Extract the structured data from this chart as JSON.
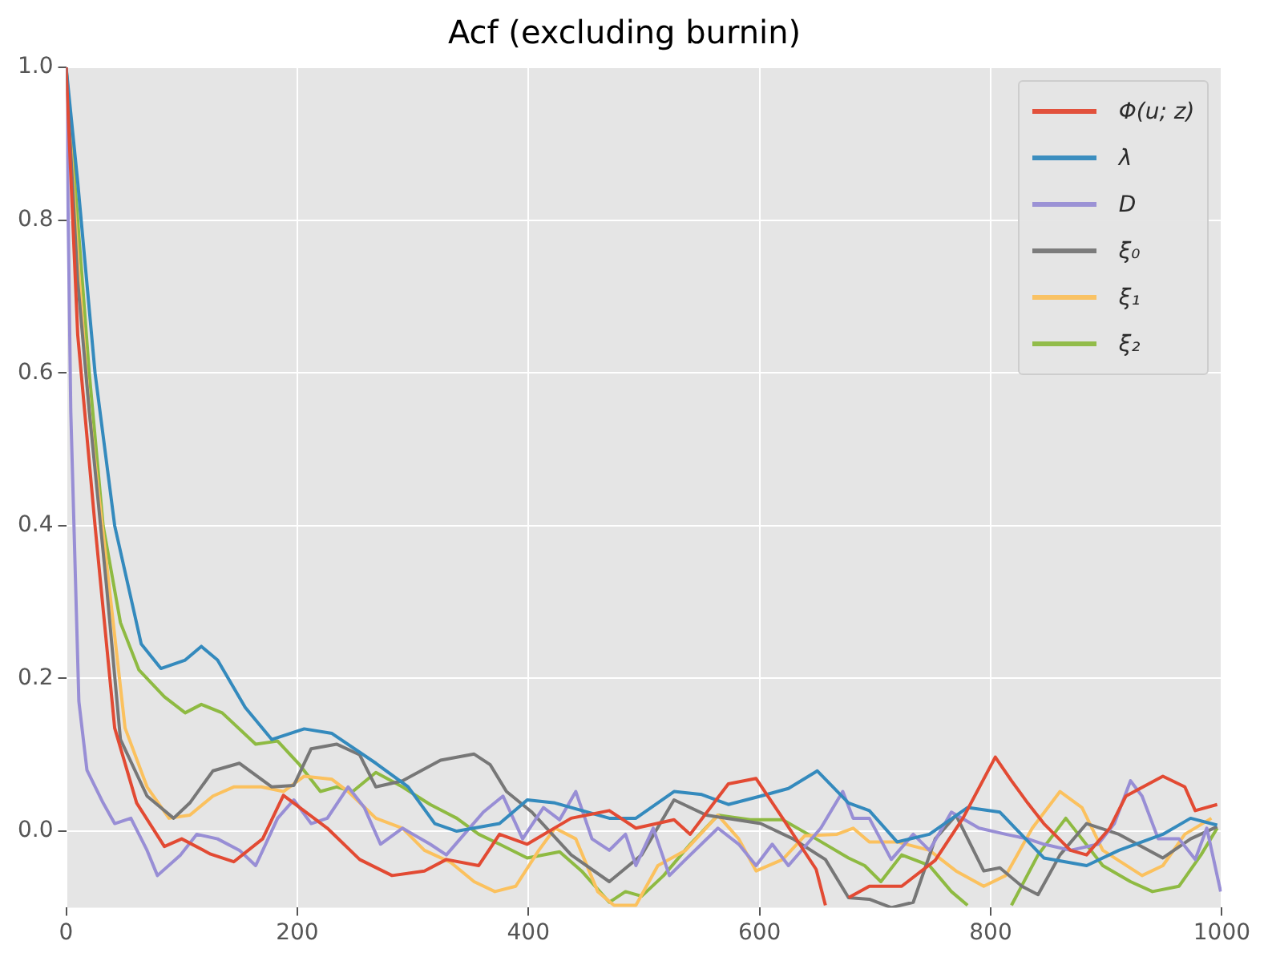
{
  "chart_data": {
    "type": "line",
    "title": "Acf (excluding burnin)",
    "xlim": [
      0,
      1000
    ],
    "xticks": [
      0,
      200,
      400,
      600,
      800,
      1000
    ],
    "ylim": [
      -0.1,
      1.0
    ],
    "yticks": [
      {
        "value": 0,
        "label": "0.0"
      },
      {
        "value": 0.2,
        "label": "0.2"
      },
      {
        "value": 0.4,
        "label": "0.4"
      },
      {
        "value": 0.6,
        "label": "0.6"
      },
      {
        "value": 0.8,
        "label": "0.8"
      },
      {
        "value": 1.0,
        "label": "1.0"
      }
    ],
    "grid": true,
    "legend": "top right",
    "series": [
      {
        "name": "Φ(u; z)",
        "color": "#e24a33",
        "x": [
          0,
          10,
          25,
          42,
          61,
          85,
          100,
          125,
          145,
          170,
          188,
          226,
          254,
          282,
          310,
          329,
          357,
          375,
          399,
          437,
          470,
          493,
          526,
          540,
          573,
          597,
          620,
          649,
          657,
          665,
          677,
          695,
          723,
          752,
          776,
          804,
          818,
          832,
          846,
          869,
          883,
          903,
          917,
          949,
          968,
          977,
          996
        ],
        "values": [
          1.0,
          0.65,
          0.4,
          0.135,
          0.037,
          -0.02,
          -0.01,
          -0.03,
          -0.04,
          -0.01,
          0.047,
          0.004,
          -0.037,
          -0.058,
          -0.052,
          -0.037,
          -0.045,
          -0.004,
          -0.017,
          0.017,
          0.027,
          0.004,
          0.015,
          -0.004,
          0.062,
          0.069,
          0.017,
          -0.05,
          -0.097,
          null,
          -0.087,
          -0.072,
          -0.072,
          -0.038,
          0.017,
          0.097,
          0.066,
          0.037,
          0.01,
          -0.025,
          -0.031,
          0.004,
          0.046,
          0.072,
          0.058,
          0.027,
          0.035
        ]
      },
      {
        "name": "λ",
        "color": "#348abd",
        "x": [
          0,
          10,
          25,
          42,
          65,
          82,
          103,
          117,
          131,
          155,
          178,
          206,
          230,
          268,
          296,
          319,
          338,
          375,
          399,
          423,
          470,
          493,
          526,
          550,
          573,
          601,
          625,
          650,
          677,
          695,
          719,
          747,
          780,
          808,
          846,
          883,
          911,
          949,
          973,
          996
        ],
        "values": [
          1.0,
          0.85,
          0.6,
          0.4,
          0.245,
          0.213,
          0.224,
          0.242,
          0.224,
          0.162,
          0.12,
          0.134,
          0.128,
          0.089,
          0.058,
          0.01,
          0.0,
          0.01,
          0.041,
          0.037,
          0.017,
          0.017,
          0.052,
          0.048,
          0.035,
          0.046,
          0.056,
          0.079,
          0.037,
          0.027,
          -0.014,
          -0.004,
          0.031,
          0.025,
          -0.035,
          -0.045,
          -0.025,
          -0.004,
          0.017,
          0.008
        ]
      },
      {
        "name": "D",
        "color": "#988ed5",
        "x": [
          0,
          4,
          11,
          18,
          32,
          42,
          56,
          70,
          79,
          99,
          113,
          131,
          150,
          164,
          183,
          197,
          212,
          226,
          244,
          258,
          272,
          291,
          315,
          329,
          361,
          378,
          395,
          413,
          427,
          441,
          455,
          470,
          484,
          493,
          508,
          522,
          536,
          564,
          582,
          597,
          611,
          625,
          653,
          672,
          681,
          695,
          714,
          733,
          747,
          766,
          790,
          813,
          832,
          846,
          869,
          893,
          907,
          921,
          931,
          945,
          963,
          977,
          987,
          999
        ],
        "values": [
          1.0,
          0.55,
          0.17,
          0.08,
          0.037,
          0.01,
          0.017,
          -0.025,
          -0.058,
          -0.031,
          -0.004,
          -0.01,
          -0.025,
          -0.045,
          0.017,
          0.041,
          0.01,
          0.017,
          0.058,
          0.031,
          -0.017,
          0.004,
          -0.017,
          -0.031,
          0.025,
          0.046,
          -0.01,
          0.031,
          0.015,
          0.052,
          -0.01,
          -0.025,
          -0.004,
          -0.045,
          0.004,
          -0.058,
          -0.037,
          0.004,
          -0.017,
          -0.045,
          -0.017,
          -0.045,
          0.004,
          0.052,
          0.017,
          0.017,
          -0.037,
          -0.004,
          -0.025,
          0.025,
          0.004,
          -0.004,
          -0.01,
          -0.017,
          -0.025,
          -0.017,
          0.01,
          0.066,
          0.046,
          -0.01,
          -0.01,
          -0.037,
          0.004,
          -0.079
        ]
      },
      {
        "name": "ξ₀",
        "color": "#777777",
        "x": [
          0,
          10,
          20,
          35,
          47,
          70,
          93,
          107,
          127,
          150,
          178,
          197,
          212,
          234,
          254,
          268,
          291,
          324,
          353,
          367,
          381,
          403,
          437,
          470,
          498,
          526,
          554,
          601,
          629,
          657,
          677,
          695,
          714,
          733,
          752,
          770,
          794,
          808,
          827,
          841,
          860,
          883,
          911,
          949,
          973,
          996
        ],
        "values": [
          1.0,
          0.72,
          0.55,
          0.32,
          0.12,
          0.046,
          0.017,
          0.037,
          0.079,
          0.089,
          0.058,
          0.06,
          0.108,
          0.114,
          0.1,
          0.058,
          0.066,
          0.093,
          0.101,
          0.087,
          0.052,
          0.025,
          -0.031,
          -0.066,
          -0.031,
          0.041,
          0.021,
          0.01,
          -0.01,
          -0.037,
          -0.087,
          -0.089,
          -0.1,
          -0.093,
          -0.01,
          0.021,
          -0.052,
          -0.048,
          -0.072,
          -0.083,
          -0.031,
          0.01,
          -0.004,
          -0.035,
          -0.01,
          0.006
        ]
      },
      {
        "name": "ξ₁",
        "color": "#fbc15e",
        "x": [
          0,
          10,
          20,
          35,
          51,
          70,
          89,
          107,
          127,
          145,
          169,
          188,
          206,
          230,
          244,
          268,
          291,
          310,
          333,
          353,
          371,
          389,
          409,
          423,
          441,
          460,
          474,
          493,
          512,
          536,
          564,
          582,
          597,
          620,
          639,
          667,
          681,
          695,
          719,
          747,
          770,
          794,
          813,
          836,
          860,
          879,
          897,
          931,
          949,
          968,
          991
        ],
        "values": [
          1.0,
          0.75,
          0.55,
          0.35,
          0.135,
          0.058,
          0.017,
          0.021,
          0.046,
          0.058,
          0.058,
          0.052,
          0.072,
          0.068,
          0.052,
          0.017,
          0.004,
          -0.025,
          -0.041,
          -0.066,
          -0.079,
          -0.072,
          -0.025,
          0.004,
          -0.01,
          -0.079,
          -0.097,
          -0.097,
          -0.045,
          -0.025,
          0.021,
          -0.01,
          -0.052,
          -0.037,
          -0.006,
          -0.004,
          0.004,
          -0.014,
          -0.014,
          -0.025,
          -0.052,
          -0.072,
          -0.058,
          0.004,
          0.052,
          0.031,
          -0.025,
          -0.058,
          -0.045,
          -0.004,
          0.017
        ]
      },
      {
        "name": "ξ₂",
        "color": "#8eba42",
        "x": [
          0,
          10,
          20,
          32,
          47,
          63,
          85,
          103,
          117,
          135,
          164,
          183,
          202,
          220,
          234,
          248,
          268,
          291,
          315,
          338,
          357,
          375,
          399,
          427,
          446,
          470,
          484,
          498,
          517,
          540,
          564,
          592,
          620,
          649,
          677,
          691,
          705,
          723,
          747,
          766,
          780,
          800,
          818,
          841,
          865,
          879,
          897,
          921,
          940,
          963,
          982,
          996
        ],
        "values": [
          1.0,
          0.8,
          0.6,
          0.4,
          0.273,
          0.211,
          0.176,
          0.155,
          0.166,
          0.155,
          0.114,
          0.118,
          0.087,
          0.052,
          0.058,
          0.052,
          0.077,
          0.058,
          0.035,
          0.017,
          -0.004,
          -0.017,
          -0.035,
          -0.027,
          -0.052,
          -0.093,
          -0.079,
          -0.085,
          -0.058,
          -0.017,
          0.021,
          0.015,
          0.015,
          -0.01,
          -0.035,
          -0.045,
          -0.066,
          -0.031,
          -0.045,
          -0.079,
          -0.097,
          null,
          -0.097,
          -0.031,
          0.017,
          -0.01,
          -0.045,
          -0.066,
          -0.079,
          -0.072,
          -0.031,
          0.004
        ]
      }
    ]
  }
}
